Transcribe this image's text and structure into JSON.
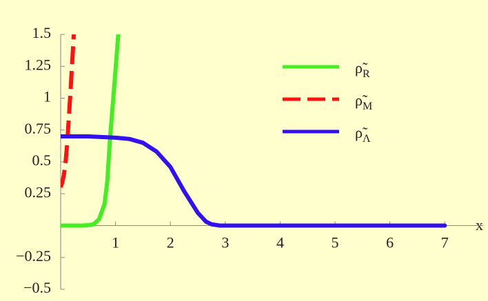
{
  "chart_data": {
    "type": "line",
    "xlabel": "x",
    "xlim": [
      0,
      7.7
    ],
    "ylim": [
      -0.5,
      1.5
    ],
    "xticks": [
      1,
      2,
      3,
      4,
      5,
      6,
      7
    ],
    "yticks": [
      {
        "value": -0.5,
        "label": "−0.5"
      },
      {
        "value": -0.25,
        "label": "−0.25"
      },
      0.25,
      0.5,
      0.75,
      1,
      1.25,
      1.5
    ],
    "legend": "upper-right",
    "series": [
      {
        "name": "ρ̃",
        "subscript": "R",
        "color": "#44ee22",
        "dash": "solid",
        "x": [
          0,
          0.2,
          0.4,
          0.5,
          0.6,
          0.7,
          0.8,
          0.85,
          0.9,
          0.95,
          1.0,
          1.05
        ],
        "values": [
          0,
          0,
          0,
          0.003,
          0.01,
          0.05,
          0.17,
          0.35,
          0.68,
          0.95,
          1.22,
          1.5
        ]
      },
      {
        "name": "ρ̃",
        "subscript": "M",
        "color": "#ff1111",
        "dash": "dashed",
        "x": [
          0,
          0.03,
          0.06,
          0.09,
          0.12,
          0.15,
          0.18,
          0.21,
          0.24
        ],
        "values": [
          0.3,
          0.34,
          0.4,
          0.5,
          0.65,
          0.85,
          1.05,
          1.28,
          1.5
        ]
      },
      {
        "name": "ρ̃",
        "subscript": "Λ",
        "color": "#3311ee",
        "dash": "solid",
        "x": [
          0,
          0.5,
          1,
          1.25,
          1.5,
          1.75,
          2,
          2.25,
          2.5,
          2.65,
          2.75,
          2.9,
          3,
          4,
          5,
          6,
          7
        ],
        "values": [
          0.7,
          0.7,
          0.69,
          0.68,
          0.65,
          0.58,
          0.46,
          0.27,
          0.1,
          0.03,
          0.01,
          0,
          0,
          0,
          0,
          0,
          0
        ]
      }
    ]
  }
}
